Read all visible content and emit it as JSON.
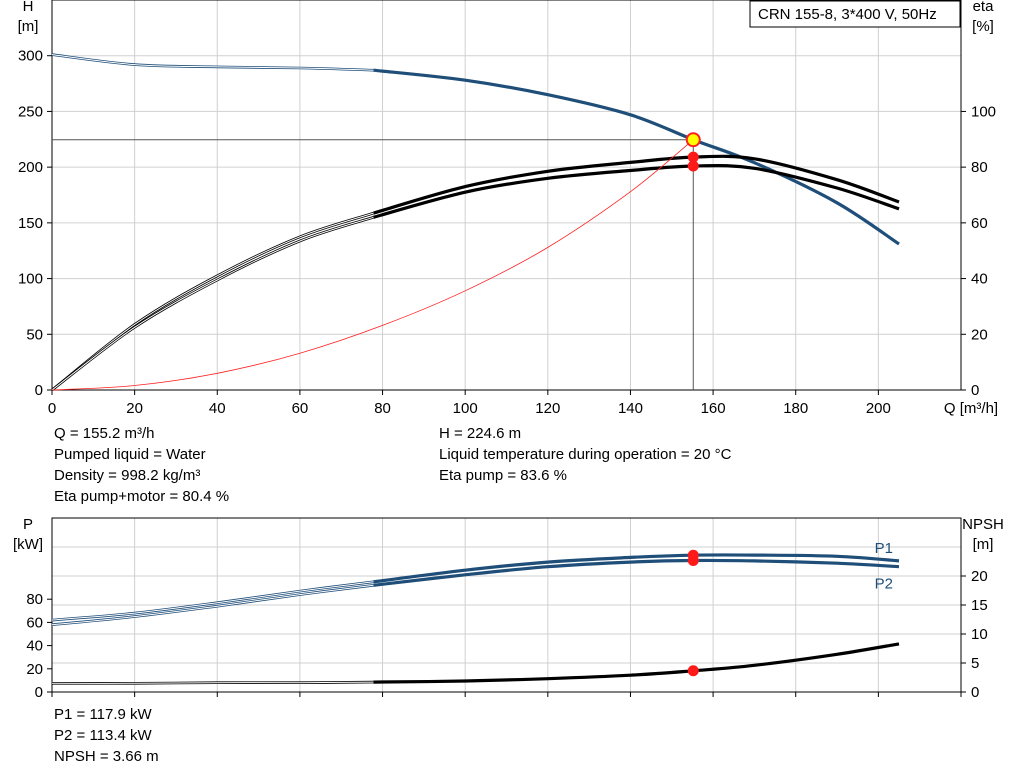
{
  "chart_data": [
    {
      "type": "line",
      "title": "CRN 155-8, 3*400 V, 50Hz",
      "xlabel": "Q [m³/h]",
      "ylabel": "H\n[m]",
      "y2label": "eta\n[%]",
      "xlim": [
        0,
        220
      ],
      "ylim": [
        0,
        350
      ],
      "y2lim": [
        0,
        140
      ],
      "x_ticks": [
        0,
        20,
        40,
        60,
        80,
        100,
        120,
        140,
        160,
        180,
        200
      ],
      "y_ticks": [
        0,
        50,
        100,
        150,
        200,
        250,
        300
      ],
      "y2_ticks": [
        0,
        20,
        40,
        60,
        80,
        100
      ],
      "grid": true,
      "series": [
        {
          "axis": "y",
          "color": "#1f4e79",
          "boundary": 77.8,
          "x": [
            0,
            20,
            40,
            60,
            77.8,
            100,
            120,
            140,
            155.2,
            170,
            190,
            205
          ],
          "y": [
            301,
            292,
            290,
            289,
            287,
            278,
            265,
            247,
            224.6,
            204,
            168,
            131
          ]
        },
        {
          "axis": "y2",
          "color": "#000000",
          "boundary": 77.8,
          "x": [
            0,
            20,
            40,
            60,
            77.8,
            100,
            120,
            140,
            155.2,
            170,
            190,
            205
          ],
          "y": [
            0,
            23.5,
            41,
            55,
            63.5,
            73,
            78.5,
            81.7,
            83.6,
            83,
            75.5,
            67.5
          ]
        },
        {
          "axis": "y2",
          "color": "#000000",
          "boundary": 77.8,
          "x": [
            0,
            20,
            40,
            60,
            77.8,
            100,
            120,
            140,
            155.2,
            170,
            190,
            205
          ],
          "y": [
            0,
            22.5,
            39.5,
            53.5,
            62,
            71,
            76,
            78.8,
            80.4,
            79.6,
            72.5,
            65
          ]
        },
        {
          "axis": "y",
          "color": "#ff2020",
          "boundary": -1,
          "x": [
            0,
            20,
            40,
            60,
            80,
            100,
            120,
            140,
            155.2
          ],
          "y": [
            0,
            4,
            15,
            33,
            58,
            89,
            128,
            178,
            224.6
          ]
        }
      ],
      "duty_point": {
        "q": 155.2,
        "h": 224.6,
        "eta_pump": 83.6,
        "eta_total": 80.4
      },
      "info_left": [
        "Q = 155.2 m³/h",
        "Pumped liquid = Water",
        "Density = 998.2 kg/m³",
        "Eta pump+motor = 80.4 %"
      ],
      "info_right": [
        "H = 224.6 m",
        "Liquid temperature during operation = 20 °C",
        "Eta pump = 83.6 %"
      ]
    },
    {
      "type": "line",
      "ylabel": "P\n[kW]",
      "y2label": "NPSH\n[m]",
      "xlim": [
        0,
        220
      ],
      "ylim": [
        0,
        150
      ],
      "y2lim": [
        0,
        30
      ],
      "y_ticks": [
        0,
        20,
        40,
        60,
        80
      ],
      "y2_ticks": [
        0,
        5,
        10,
        15,
        20
      ],
      "grid": true,
      "series": [
        {
          "name": "P1",
          "axis": "y",
          "color": "#1f4e79",
          "boundary": 77.8,
          "x": [
            0,
            20,
            40,
            60,
            77.8,
            100,
            120,
            140,
            155.2,
            170,
            190,
            205
          ],
          "y": [
            62,
            68,
            77,
            87,
            95,
            105,
            112,
            116,
            117.9,
            118,
            117,
            113
          ]
        },
        {
          "name": "P2",
          "axis": "y",
          "color": "#1f4e79",
          "boundary": 77.8,
          "x": [
            0,
            20,
            40,
            60,
            77.8,
            100,
            120,
            140,
            155.2,
            170,
            190,
            205
          ],
          "y": [
            58,
            65,
            74,
            84,
            92,
            101,
            108,
            112,
            113.4,
            113,
            111,
            108
          ]
        },
        {
          "name": "NPSH",
          "axis": "y2",
          "color": "#000000",
          "boundary": 77.8,
          "x": [
            0,
            20,
            40,
            60,
            77.8,
            100,
            120,
            140,
            155.2,
            170,
            190,
            205
          ],
          "y": [
            1.5,
            1.5,
            1.6,
            1.6,
            1.7,
            1.9,
            2.3,
            2.9,
            3.66,
            4.6,
            6.5,
            8.3
          ]
        }
      ],
      "duty_point": {
        "q": 155.2,
        "p1": 117.9,
        "p2": 113.4,
        "npsh": 3.66
      },
      "info_left": [
        "P1 = 117.9 kW",
        "P2 = 113.4 kW",
        "NPSH = 3.66 m"
      ]
    }
  ]
}
